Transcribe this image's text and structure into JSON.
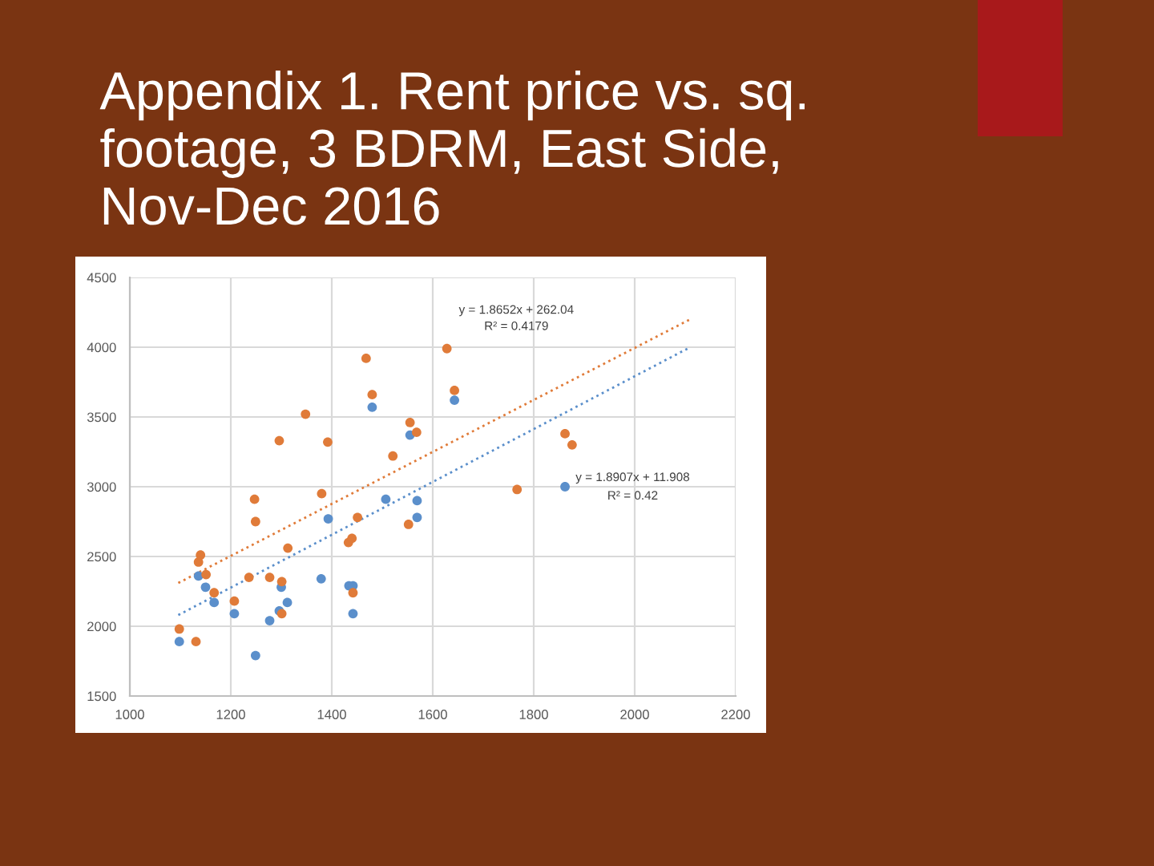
{
  "chart_data": {
    "type": "scatter",
    "title": "Appendix 1. Rent price vs. sq. footage, 3 BDRM, East Side, Nov-Dec 2016",
    "xlim": [
      1000,
      2200
    ],
    "xticks": [
      1000,
      1200,
      1400,
      1600,
      1800,
      2000,
      2200
    ],
    "ylim": [
      1500,
      4500
    ],
    "yticks": [
      1500,
      2000,
      2500,
      3000,
      3500,
      4000,
      4500
    ],
    "grid": true,
    "series": [
      {
        "color": "#5b8fcb",
        "marker": "circle",
        "x": [
          1098,
          1136,
          1150,
          1167,
          1207,
          1249,
          1277,
          1296,
          1300,
          1312,
          1379,
          1393,
          1434,
          1442,
          1442,
          1480,
          1507,
          1555,
          1569,
          1569,
          1643,
          1862
        ],
        "values": [
          1890,
          2360,
          2280,
          2170,
          2090,
          1790,
          2040,
          2110,
          2280,
          2170,
          2340,
          2770,
          2290,
          2290,
          2090,
          3570,
          2910,
          3370,
          2900,
          2780,
          3620,
          3000
        ]
      },
      {
        "color": "#e07b39",
        "marker": "circle",
        "x": [
          1098,
          1131,
          1136,
          1140,
          1151,
          1167,
          1207,
          1236,
          1247,
          1249,
          1277,
          1296,
          1301,
          1301,
          1313,
          1348,
          1380,
          1392,
          1433,
          1440,
          1442,
          1451,
          1468,
          1480,
          1521,
          1552,
          1555,
          1568,
          1628,
          1643,
          1767,
          1862,
          1876
        ],
        "values": [
          1980,
          1890,
          2460,
          2510,
          2370,
          2240,
          2180,
          2350,
          2910,
          2750,
          2350,
          3330,
          2320,
          2090,
          2560,
          3520,
          2950,
          3320,
          2600,
          2630,
          2240,
          2780,
          3920,
          3660,
          3220,
          2730,
          3460,
          3390,
          3990,
          3690,
          2980,
          3380,
          3300
        ]
      },
      {
        "type": "line",
        "color": "#e07b39",
        "line_style": "dotted",
        "x": [
          1096,
          2110
        ],
        "values": [
          2310,
          4200
        ]
      },
      {
        "type": "line",
        "color": "#5b8fcb",
        "line_style": "dotted",
        "x": [
          1096,
          2110
        ],
        "values": [
          2080,
          4000
        ]
      }
    ],
    "annotations": [
      "y = 1.8652x + 262.04",
      "R² = 0.4179",
      "y = 1.8907x + 11.908",
      "R² = 0.42"
    ]
  }
}
